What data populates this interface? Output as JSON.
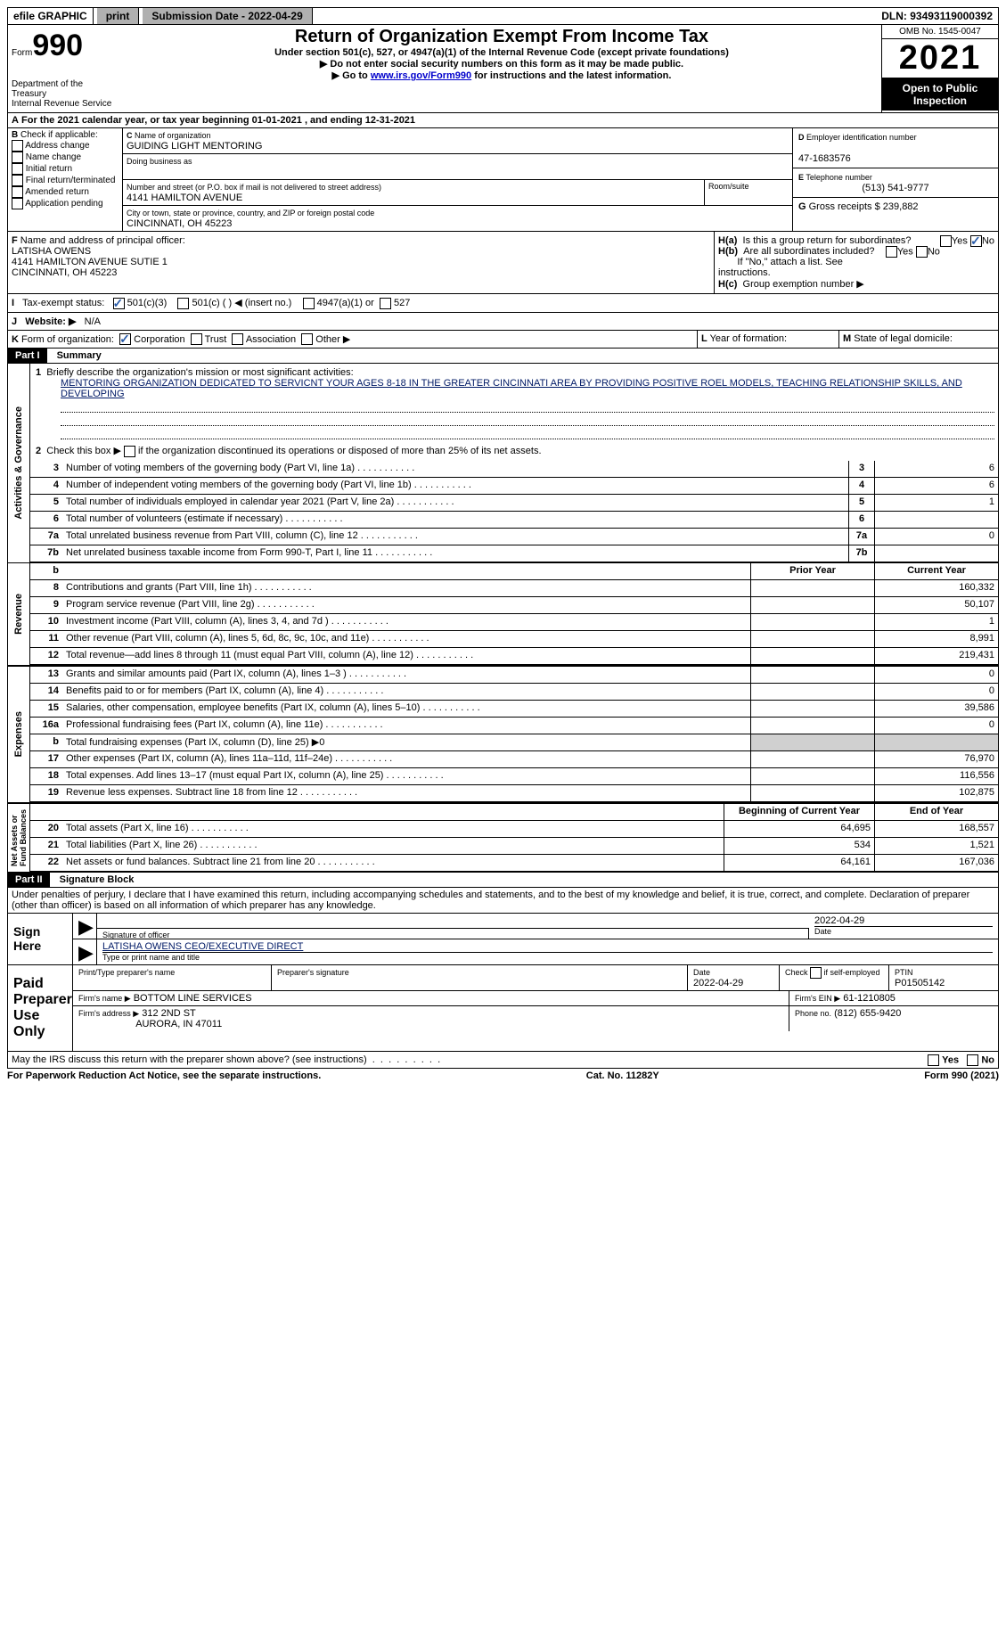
{
  "topbar": {
    "efile": "efile GRAPHIC",
    "print": "print",
    "sub_label": "Submission Date - 2022-04-29",
    "dln": "DLN: 93493119000392"
  },
  "header": {
    "form_label": "Form",
    "form_num": "990",
    "dept": "Department of the Treasury",
    "irs": "Internal Revenue Service",
    "title": "Return of Organization Exempt From Income Tax",
    "sub1": "Under section 501(c), 527, or 4947(a)(1) of the Internal Revenue Code (except private foundations)",
    "sub2": "▶ Do not enter social security numbers on this form as it may be made public.",
    "sub3_a": "▶ Go to ",
    "sub3_link": "www.irs.gov/Form990",
    "sub3_b": " for instructions and the latest information.",
    "omb": "OMB No. 1545-0047",
    "year": "2021",
    "inspect": "Open to Public Inspection"
  },
  "periodA": "For the 2021 calendar year, or tax year beginning 01-01-2021    , and ending 12-31-2021",
  "B": {
    "label": "Check if applicable:",
    "opts": [
      "Address change",
      "Name change",
      "Initial return",
      "Final return/terminated",
      "Amended return",
      "Application pending"
    ]
  },
  "C": {
    "name_lbl": "Name of organization",
    "name": "GUIDING LIGHT MENTORING",
    "dba_lbl": "Doing business as",
    "addr_lbl": "Number and street (or P.O. box if mail is not delivered to street address)",
    "room_lbl": "Room/suite",
    "addr": "4141 HAMILTON AVENUE",
    "city_lbl": "City or town, state or province, country, and ZIP or foreign postal code",
    "city": "CINCINNATI, OH  45223"
  },
  "D": {
    "lbl": "Employer identification number",
    "val": "47-1683576"
  },
  "E": {
    "lbl": "Telephone number",
    "val": "(513) 541-9777"
  },
  "G": {
    "lbl": "Gross receipts $",
    "val": "239,882"
  },
  "F": {
    "lbl": "Name and address of principal officer:",
    "name": "LATISHA OWENS",
    "addr": "4141 HAMILTON AVENUE SUTIE 1",
    "city": "CINCINNATI, OH  45223"
  },
  "H": {
    "a": "Is this a group return for subordinates?",
    "b": "Are all subordinates included?",
    "note": "If \"No,\" attach a list. See instructions.",
    "c": "Group exemption number ▶"
  },
  "I": {
    "lbl": "Tax-exempt status:",
    "o1": "501(c)(3)",
    "o2": "501(c) (  ) ◀ (insert no.)",
    "o3": "4947(a)(1) or",
    "o4": "527"
  },
  "J": {
    "lbl": "Website: ▶",
    "val": "N/A"
  },
  "K": {
    "lbl": "Form of organization:",
    "o1": "Corporation",
    "o2": "Trust",
    "o3": "Association",
    "o4": "Other ▶"
  },
  "L": "Year of formation:",
  "M": "State of legal domicile:",
  "part1": {
    "title": "Part I",
    "name": "Summary",
    "l1_lbl": "Briefly describe the organization's mission or most significant activities:",
    "l1_txt": "MENTORING ORGANIZATION DEDICATED TO SERVICNT YOUR AGES 8-18 IN THE GREATER CINCINNATI AREA BY PROVIDING POSITIVE ROEL MODELS, TEACHING RELATIONSHIP SKILLS, AND DEVELOPING",
    "l2": "Check this box ▶     if the organization discontinued its operations or disposed of more than 25% of its net assets.",
    "lines_a": [
      {
        "n": "3",
        "d": "Number of voting members of the governing body (Part VI, line 1a)",
        "v": "6"
      },
      {
        "n": "4",
        "d": "Number of independent voting members of the governing body (Part VI, line 1b)",
        "v": "6"
      },
      {
        "n": "5",
        "d": "Total number of individuals employed in calendar year 2021 (Part V, line 2a)",
        "v": "1"
      },
      {
        "n": "6",
        "d": "Total number of volunteers (estimate if necessary)",
        "v": ""
      },
      {
        "n": "7a",
        "d": "Total unrelated business revenue from Part VIII, column (C), line 12",
        "v": "0"
      },
      {
        "n": "7b",
        "d": "Net unrelated business taxable income from Form 990-T, Part I, line 11",
        "v": "",
        "nobox": true
      }
    ],
    "hdr_prior": "Prior Year",
    "hdr_curr": "Current Year",
    "revenue": [
      {
        "n": "8",
        "d": "Contributions and grants (Part VIII, line 1h)",
        "p": "",
        "c": "160,332"
      },
      {
        "n": "9",
        "d": "Program service revenue (Part VIII, line 2g)",
        "p": "",
        "c": "50,107"
      },
      {
        "n": "10",
        "d": "Investment income (Part VIII, column (A), lines 3, 4, and 7d )",
        "p": "",
        "c": "1"
      },
      {
        "n": "11",
        "d": "Other revenue (Part VIII, column (A), lines 5, 6d, 8c, 9c, 10c, and 11e)",
        "p": "",
        "c": "8,991"
      },
      {
        "n": "12",
        "d": "Total revenue—add lines 8 through 11 (must equal Part VIII, column (A), line 12)",
        "p": "",
        "c": "219,431"
      }
    ],
    "expenses": [
      {
        "n": "13",
        "d": "Grants and similar amounts paid (Part IX, column (A), lines 1–3 )",
        "p": "",
        "c": "0"
      },
      {
        "n": "14",
        "d": "Benefits paid to or for members (Part IX, column (A), line 4)",
        "p": "",
        "c": "0"
      },
      {
        "n": "15",
        "d": "Salaries, other compensation, employee benefits (Part IX, column (A), lines 5–10)",
        "p": "",
        "c": "39,586"
      },
      {
        "n": "16a",
        "d": "Professional fundraising fees (Part IX, column (A), line 11e)",
        "p": "",
        "c": "0"
      },
      {
        "n": "b",
        "d": "Total fundraising expenses (Part IX, column (D), line 25) ▶0",
        "shaded": true
      },
      {
        "n": "17",
        "d": "Other expenses (Part IX, column (A), lines 11a–11d, 11f–24e)",
        "p": "",
        "c": "76,970"
      },
      {
        "n": "18",
        "d": "Total expenses. Add lines 13–17 (must equal Part IX, column (A), line 25)",
        "p": "",
        "c": "116,556"
      },
      {
        "n": "19",
        "d": "Revenue less expenses. Subtract line 18 from line 12",
        "p": "",
        "c": "102,875"
      }
    ],
    "hdr_begin": "Beginning of Current Year",
    "hdr_end": "End of Year",
    "net": [
      {
        "n": "20",
        "d": "Total assets (Part X, line 16)",
        "p": "64,695",
        "c": "168,557"
      },
      {
        "n": "21",
        "d": "Total liabilities (Part X, line 26)",
        "p": "534",
        "c": "1,521"
      },
      {
        "n": "22",
        "d": "Net assets or fund balances. Subtract line 21 from line 20",
        "p": "64,161",
        "c": "167,036"
      }
    ]
  },
  "part2": {
    "title": "Part II",
    "name": "Signature Block",
    "decl": "Under penalties of perjury, I declare that I have examined this return, including accompanying schedules and statements, and to the best of my knowledge and belief, it is true, correct, and complete. Declaration of preparer (other than officer) is based on all information of which preparer has any knowledge.",
    "sign_here": "Sign Here",
    "sig_officer": "Signature of officer",
    "sig_date": "2022-04-29",
    "sig_date_lbl": "Date",
    "officer_name": "LATISHA OWENS CEO/EXECUTIVE DIRECT",
    "officer_lbl": "Type or print name and title",
    "paid": "Paid Preparer Use Only",
    "prep_name_lbl": "Print/Type preparer's name",
    "prep_sig_lbl": "Preparer's signature",
    "date_lbl": "Date",
    "date_val": "2022-04-29",
    "check_lbl": "Check       if self-employed",
    "ptin_lbl": "PTIN",
    "ptin": "P01505142",
    "firm_name_lbl": "Firm's name     ▶",
    "firm_name": "BOTTOM LINE SERVICES",
    "firm_ein_lbl": "Firm's EIN ▶",
    "firm_ein": "61-1210805",
    "firm_addr_lbl": "Firm's address ▶",
    "firm_addr1": "312 2ND ST",
    "firm_addr2": "AURORA, IN  47011",
    "phone_lbl": "Phone no.",
    "phone": "(812) 655-9420",
    "discuss": "May the IRS discuss this return with the preparer shown above? (see instructions)"
  },
  "footer": {
    "left": "For Paperwork Reduction Act Notice, see the separate instructions.",
    "mid": "Cat. No. 11282Y",
    "right": "Form 990 (2021)"
  }
}
